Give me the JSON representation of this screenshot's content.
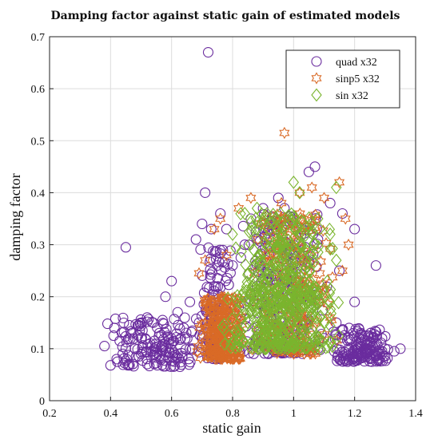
{
  "chart_data": {
    "type": "scatter",
    "title": "Damping factor against static gain of estimated models",
    "xlabel": "static gain",
    "ylabel": "damping factor",
    "xlim": [
      0.2,
      1.4
    ],
    "ylim": [
      0,
      0.7
    ],
    "xticks": [
      "0.2",
      "0.4",
      "0.6",
      "0.8",
      "1",
      "1.2",
      "1.4"
    ],
    "yticks": [
      "0",
      "0.1",
      "0.2",
      "0.3",
      "0.4",
      "0.5",
      "0.6",
      "0.7"
    ],
    "grid": true,
    "legend_position": "top-right",
    "series": [
      {
        "name": "quad x32",
        "marker": "circle",
        "color": "#6a2c9e",
        "points": [
          [
            0.72,
            0.67
          ],
          [
            0.45,
            0.295
          ],
          [
            0.39,
            0.148
          ],
          [
            0.38,
            0.105
          ],
          [
            0.4,
            0.068
          ],
          [
            0.42,
            0.08
          ],
          [
            0.44,
            0.09
          ],
          [
            0.46,
            0.07
          ],
          [
            0.48,
            0.1
          ],
          [
            0.5,
            0.12
          ],
          [
            0.52,
            0.16
          ],
          [
            0.54,
            0.15
          ],
          [
            0.56,
            0.13
          ],
          [
            0.58,
            0.2
          ],
          [
            0.6,
            0.23
          ],
          [
            0.62,
            0.17
          ],
          [
            0.64,
            0.14
          ],
          [
            0.66,
            0.19
          ],
          [
            0.68,
            0.31
          ],
          [
            0.7,
            0.34
          ],
          [
            0.71,
            0.4
          ],
          [
            0.73,
            0.33
          ],
          [
            0.76,
            0.36
          ],
          [
            0.78,
            0.33
          ],
          [
            0.86,
            0.35
          ],
          [
            0.9,
            0.37
          ],
          [
            0.95,
            0.39
          ],
          [
            0.97,
            0.37
          ],
          [
            1.05,
            0.44
          ],
          [
            1.07,
            0.45
          ],
          [
            1.12,
            0.38
          ],
          [
            1.16,
            0.36
          ],
          [
            1.2,
            0.33
          ],
          [
            1.27,
            0.26
          ],
          [
            1.35,
            0.1
          ],
          [
            1.3,
            0.1
          ],
          [
            1.25,
            0.11
          ],
          [
            1.22,
            0.13
          ],
          [
            1.18,
            0.1
          ],
          [
            1.14,
            0.15
          ],
          [
            1.1,
            0.12
          ],
          [
            0.82,
            0.18
          ],
          [
            0.88,
            0.22
          ],
          [
            0.92,
            0.28
          ],
          [
            1.0,
            0.3
          ],
          [
            1.03,
            0.27
          ],
          [
            0.8,
            0.26
          ],
          [
            0.74,
            0.22
          ],
          [
            0.7,
            0.12
          ],
          [
            0.66,
            0.1
          ],
          [
            0.62,
            0.09
          ],
          [
            0.56,
            0.085
          ],
          [
            0.5,
            0.09
          ],
          [
            0.45,
            0.1
          ],
          [
            0.43,
            0.115
          ],
          [
            0.41,
            0.125
          ],
          [
            0.47,
            0.13
          ],
          [
            0.53,
            0.11
          ],
          [
            0.59,
            0.11
          ],
          [
            0.63,
            0.12
          ],
          [
            0.69,
            0.15
          ],
          [
            0.75,
            0.26
          ],
          [
            0.84,
            0.3
          ],
          [
            0.98,
            0.34
          ],
          [
            1.08,
            0.31
          ],
          [
            1.15,
            0.25
          ],
          [
            1.2,
            0.19
          ],
          [
            1.24,
            0.095
          ],
          [
            1.28,
            0.09
          ],
          [
            1.33,
            0.095
          ]
        ],
        "cloud": [
          {
            "x": [
              0.4,
              0.7
            ],
            "y": [
              0.065,
              0.16
            ],
            "n": 140
          },
          {
            "x": [
              0.68,
              0.8
            ],
            "y": [
              0.08,
              0.3
            ],
            "n": 110
          },
          {
            "x": [
              0.8,
              1.12
            ],
            "y": [
              0.09,
              0.36
            ],
            "n": 260
          },
          {
            "x": [
              1.12,
              1.32
            ],
            "y": [
              0.075,
              0.14
            ],
            "n": 150
          }
        ]
      },
      {
        "name": "sinp5 x32",
        "marker": "hexagram",
        "color": "#d96a26",
        "points": [
          [
            0.97,
            0.515
          ],
          [
            0.69,
            0.245
          ],
          [
            0.71,
            0.27
          ],
          [
            0.74,
            0.33
          ],
          [
            0.76,
            0.35
          ],
          [
            0.82,
            0.37
          ],
          [
            0.86,
            0.39
          ],
          [
            0.9,
            0.34
          ],
          [
            0.96,
            0.38
          ],
          [
            1.02,
            0.4
          ],
          [
            1.06,
            0.41
          ],
          [
            1.1,
            0.39
          ],
          [
            1.15,
            0.42
          ],
          [
            1.17,
            0.35
          ],
          [
            1.18,
            0.3
          ],
          [
            1.16,
            0.25
          ],
          [
            1.12,
            0.16
          ],
          [
            0.78,
            0.28
          ]
        ],
        "cloud": [
          {
            "x": [
              0.68,
              0.84
            ],
            "y": [
              0.08,
              0.2
            ],
            "n": 260
          },
          {
            "x": [
              0.84,
              1.16
            ],
            "y": [
              0.09,
              0.36
            ],
            "n": 220
          }
        ]
      },
      {
        "name": "sin x32",
        "marker": "diamond",
        "color": "#7ab52e",
        "points": [
          [
            1.0,
            0.42
          ],
          [
            1.02,
            0.4
          ],
          [
            1.14,
            0.41
          ],
          [
            0.8,
            0.32
          ],
          [
            0.84,
            0.36
          ],
          [
            0.88,
            0.37
          ],
          [
            0.92,
            0.33
          ],
          [
            1.08,
            0.35
          ],
          [
            1.12,
            0.32
          ],
          [
            1.14,
            0.27
          ]
        ],
        "cloud": [
          {
            "x": [
              0.76,
              1.16
            ],
            "y": [
              0.1,
              0.22
            ],
            "n": 320
          },
          {
            "x": [
              0.8,
              1.14
            ],
            "y": [
              0.18,
              0.36
            ],
            "n": 260
          }
        ]
      }
    ]
  }
}
